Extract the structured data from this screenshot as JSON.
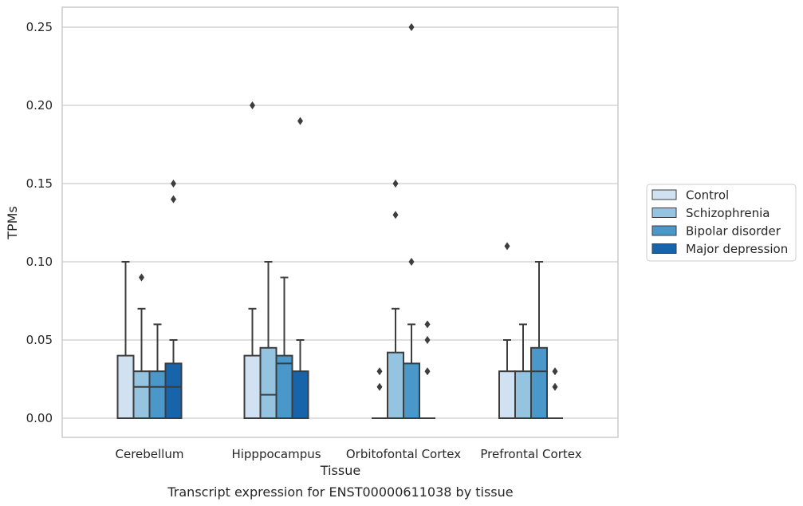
{
  "caption": "Transcript expression for ENST00000611038 by tissue",
  "chart_data": {
    "type": "box",
    "xlabel": "Tissue",
    "ylabel": "TPMs",
    "ylim": [
      -0.012,
      0.263
    ],
    "yticks": [
      "0.00",
      "0.05",
      "0.10",
      "0.15",
      "0.20",
      "0.25"
    ],
    "ytick_values": [
      0,
      0.05,
      0.1,
      0.15,
      0.2,
      0.25
    ],
    "grid": "horizontal",
    "legend_position": "right",
    "categories": [
      "Cerebellum",
      "Hipppocampus",
      "Orbitofontal Cortex",
      "Prefrontal Cortex"
    ],
    "series": [
      {
        "name": "Control",
        "color": "#d0e1f2",
        "boxes": [
          {
            "q1": 0,
            "median": 0,
            "q3": 0.04,
            "whisker_low": 0,
            "whisker_high": 0.1,
            "outliers": []
          },
          {
            "q1": 0,
            "median": 0,
            "q3": 0.04,
            "whisker_low": 0,
            "whisker_high": 0.07,
            "outliers": [
              0.2
            ]
          },
          {
            "q1": 0,
            "median": 0,
            "q3": 0,
            "whisker_low": 0,
            "whisker_high": 0,
            "outliers": [
              0.02,
              0.03
            ]
          },
          {
            "q1": 0,
            "median": 0,
            "q3": 0.03,
            "whisker_low": 0,
            "whisker_high": 0.05,
            "outliers": [
              0.11
            ]
          }
        ]
      },
      {
        "name": "Schizophrenia",
        "color": "#94c4df",
        "boxes": [
          {
            "q1": 0,
            "median": 0.02,
            "q3": 0.03,
            "whisker_low": 0,
            "whisker_high": 0.07,
            "outliers": [
              0.09
            ]
          },
          {
            "q1": 0,
            "median": 0.015,
            "q3": 0.045,
            "whisker_low": 0,
            "whisker_high": 0.1,
            "outliers": []
          },
          {
            "q1": 0,
            "median": 0,
            "q3": 0.042,
            "whisker_low": 0,
            "whisker_high": 0.07,
            "outliers": [
              0.13,
              0.15
            ]
          },
          {
            "q1": 0,
            "median": 0,
            "q3": 0.03,
            "whisker_low": 0,
            "whisker_high": 0.06,
            "outliers": []
          }
        ]
      },
      {
        "name": "Bipolar disorder",
        "color": "#4a98c9",
        "boxes": [
          {
            "q1": 0,
            "median": 0.02,
            "q3": 0.03,
            "whisker_low": 0,
            "whisker_high": 0.06,
            "outliers": []
          },
          {
            "q1": 0,
            "median": 0.035,
            "q3": 0.04,
            "whisker_low": 0,
            "whisker_high": 0.09,
            "outliers": []
          },
          {
            "q1": 0,
            "median": 0,
            "q3": 0.035,
            "whisker_low": 0,
            "whisker_high": 0.06,
            "outliers": [
              0.1,
              0.25
            ]
          },
          {
            "q1": 0,
            "median": 0.03,
            "q3": 0.045,
            "whisker_low": 0,
            "whisker_high": 0.1,
            "outliers": []
          }
        ]
      },
      {
        "name": "Major depression",
        "color": "#1764ab",
        "boxes": [
          {
            "q1": 0,
            "median": 0.02,
            "q3": 0.035,
            "whisker_low": 0,
            "whisker_high": 0.05,
            "outliers": [
              0.14,
              0.15
            ]
          },
          {
            "q1": 0,
            "median": 0,
            "q3": 0.03,
            "whisker_low": 0,
            "whisker_high": 0.05,
            "outliers": [
              0.19
            ]
          },
          {
            "q1": 0,
            "median": 0,
            "q3": 0,
            "whisker_low": 0,
            "whisker_high": 0,
            "outliers": [
              0.03,
              0.05,
              0.06
            ]
          },
          {
            "q1": 0,
            "median": 0,
            "q3": 0,
            "whisker_low": 0,
            "whisker_high": 0,
            "outliers": [
              0.02,
              0.03
            ]
          }
        ]
      }
    ]
  }
}
